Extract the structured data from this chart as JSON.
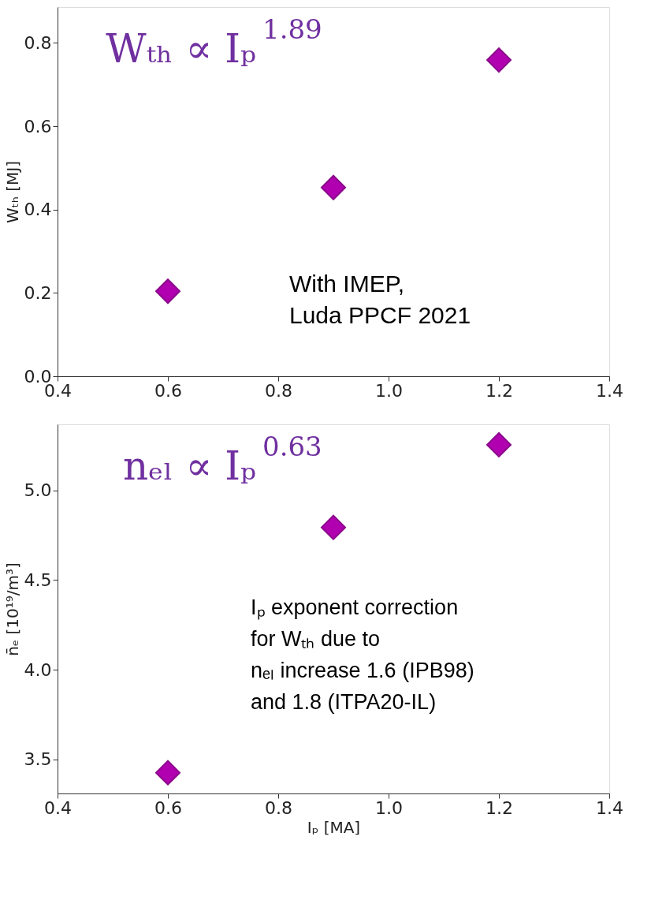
{
  "chart_data": [
    {
      "type": "scatter",
      "ylabel": "Wₜₕ [MJ]",
      "x": [
        0.6,
        0.9,
        1.2
      ],
      "marker": "diamond",
      "series": [
        {
          "color": "#b000b0",
          "values": [
            0.204,
            0.453,
            0.759
          ]
        }
      ],
      "xlim": [
        0.4,
        1.4
      ],
      "xticks": [
        0.4,
        0.6,
        0.8,
        {
          "value": 1,
          "label": "1.0"
        },
        1.2,
        1.4
      ],
      "ylim": [
        0,
        0.886
      ],
      "yticks": [
        {
          "value": 0,
          "label": "0.0"
        },
        0.2,
        0.4,
        0.6,
        0.8
      ],
      "annotations": [
        "Wₜₕ ∝ Iₚ$^{1.89}$",
        "With IMEP,\nLuda PPCF 2021"
      ]
    },
    {
      "type": "scatter",
      "xlabel": "Iₚ [MA]",
      "ylabel": "n̄ₑ [10¹⁹/m³]",
      "x": [
        0.6,
        0.9,
        1.2
      ],
      "marker": "diamond",
      "series": [
        {
          "color": "#b000b0",
          "values": [
            3.425,
            4.794,
            5.255
          ]
        }
      ],
      "xlim": [
        0.4,
        1.4
      ],
      "xticks": [
        0.4,
        0.6,
        0.8,
        {
          "value": 1,
          "label": "1.0"
        },
        1.2,
        1.4
      ],
      "ylim": [
        3.309,
        5.369
      ],
      "yticks": [
        3.5,
        {
          "value": 4,
          "label": "4.0"
        },
        4.5,
        {
          "value": 5,
          "label": "5.0"
        }
      ],
      "annotations": [
        "nₑₗ ∝ Iₚ$^{0.63}$",
        "Iₚ exponent correction\nfor Wₜₕ due to\nnₑₗ increase 1.6 (IPB98)\nand 1.8 (ITPA20-IL)"
      ]
    }
  ]
}
